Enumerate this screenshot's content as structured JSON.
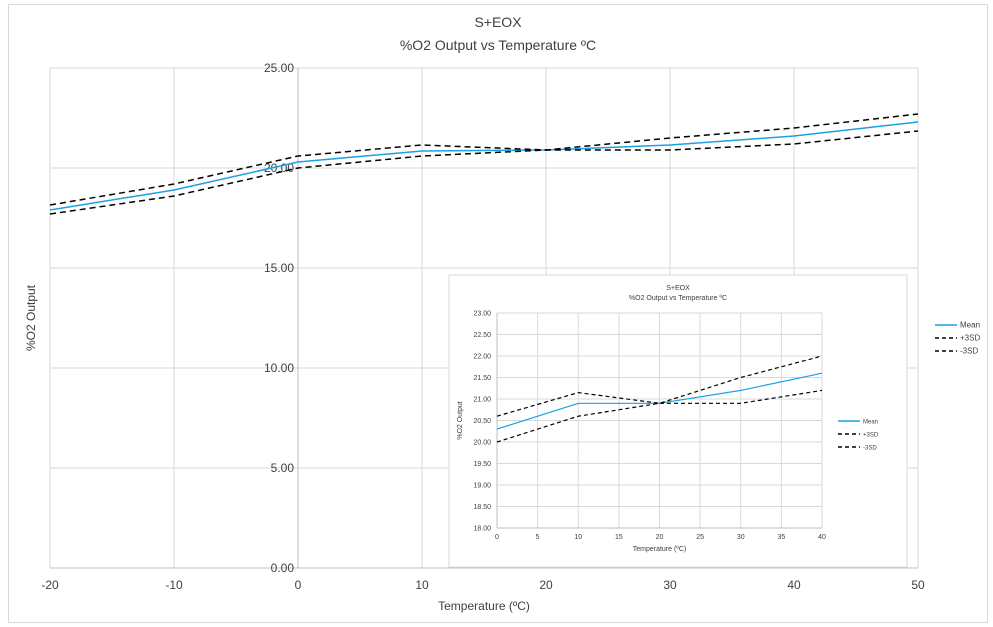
{
  "chart_data": [
    {
      "type": "line",
      "title": "S+EOX",
      "subtitle": "%O2 Output vs Temperature ºC",
      "xlabel": "Temperature (ºC)",
      "ylabel": "%O2 Output",
      "xlim": [
        -20,
        50
      ],
      "ylim": [
        0,
        25
      ],
      "x_ticks": [
        "-20",
        "-10",
        "0",
        "10",
        "20",
        "30",
        "40",
        "50"
      ],
      "y_ticks": [
        "0.00",
        "5.00",
        "10.00",
        "15.00",
        "20.00",
        "25.00"
      ],
      "grid": true,
      "legend_position": "right",
      "series": [
        {
          "name": "Mean",
          "color": "#1ba1e2",
          "dash": "solid",
          "x": [
            -20,
            -10,
            0,
            10,
            20,
            30,
            40,
            50
          ],
          "y": [
            17.9,
            18.9,
            20.3,
            20.85,
            20.9,
            21.15,
            21.6,
            22.3
          ]
        },
        {
          "name": "+3SD",
          "color": "#000000",
          "dash": "dashed",
          "x": [
            -20,
            -10,
            0,
            10,
            20,
            30,
            40,
            50
          ],
          "y": [
            18.15,
            19.2,
            20.6,
            21.15,
            20.9,
            21.5,
            22.0,
            22.7
          ]
        },
        {
          "name": "-3SD",
          "color": "#000000",
          "dash": "dashed",
          "x": [
            -20,
            -10,
            0,
            10,
            20,
            30,
            40,
            50
          ],
          "y": [
            17.7,
            18.6,
            20.0,
            20.6,
            20.9,
            20.9,
            21.2,
            21.85
          ]
        }
      ]
    },
    {
      "type": "line",
      "title": "S+EOX",
      "subtitle": "%O2 Output vs Temperature ºC",
      "xlabel": "Temperature (ºC)",
      "ylabel": "%O2 Output",
      "xlim": [
        0,
        40
      ],
      "ylim": [
        18,
        23
      ],
      "x_ticks": [
        "0",
        "5",
        "10",
        "15",
        "20",
        "25",
        "30",
        "35",
        "40"
      ],
      "y_ticks": [
        "18.00",
        "18.50",
        "19.00",
        "19.50",
        "20.00",
        "20.50",
        "21.00",
        "21.50",
        "22.00",
        "22.50",
        "23.00"
      ],
      "grid": true,
      "legend_position": "right",
      "series": [
        {
          "name": "Mean",
          "color": "#1ba1e2",
          "dash": "solid",
          "x": [
            0,
            10,
            20,
            30,
            40
          ],
          "y": [
            20.3,
            20.9,
            20.9,
            21.2,
            21.6
          ]
        },
        {
          "name": "+3SD",
          "color": "#000000",
          "dash": "dashed",
          "x": [
            0,
            10,
            20,
            30,
            40
          ],
          "y": [
            20.6,
            21.15,
            20.9,
            21.5,
            22.0
          ]
        },
        {
          "name": "-3SD",
          "color": "#000000",
          "dash": "dashed",
          "x": [
            0,
            10,
            20,
            30,
            40
          ],
          "y": [
            20.0,
            20.6,
            20.9,
            20.9,
            21.2
          ]
        }
      ]
    }
  ]
}
